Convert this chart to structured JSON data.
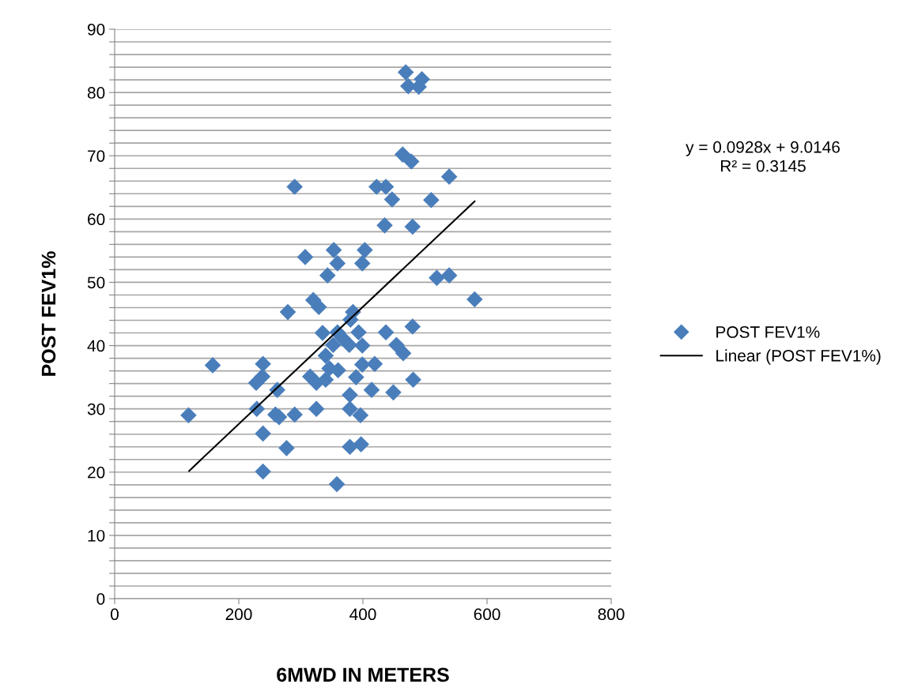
{
  "chart_data": {
    "type": "scatter",
    "xlabel": "6MWD IN METERS",
    "ylabel": "POST FEV1%",
    "xlim": [
      0,
      800
    ],
    "xticks": [
      0,
      200,
      400,
      600,
      800
    ],
    "ylim": [
      0,
      90
    ],
    "yticks": [
      0,
      {
        "value": 2,
        "label": null
      },
      {
        "value": 4,
        "label": null
      },
      {
        "value": 6,
        "label": null
      },
      {
        "value": 8,
        "label": null
      },
      10,
      {
        "value": 12,
        "label": null
      },
      {
        "value": 14,
        "label": null
      },
      {
        "value": 16,
        "label": null
      },
      {
        "value": 18,
        "label": null
      },
      20,
      {
        "value": 22,
        "label": null
      },
      {
        "value": 24,
        "label": null
      },
      {
        "value": 26,
        "label": null
      },
      {
        "value": 28,
        "label": null
      },
      30,
      {
        "value": 32,
        "label": null
      },
      {
        "value": 34,
        "label": null
      },
      {
        "value": 36,
        "label": null
      },
      {
        "value": 38,
        "label": null
      },
      40,
      {
        "value": 42,
        "label": null
      },
      {
        "value": 44,
        "label": null
      },
      {
        "value": 46,
        "label": null
      },
      {
        "value": 48,
        "label": null
      },
      50,
      {
        "value": 52,
        "label": null
      },
      {
        "value": 54,
        "label": null
      },
      {
        "value": 56,
        "label": null
      },
      {
        "value": 58,
        "label": null
      },
      60,
      {
        "value": 62,
        "label": null
      },
      {
        "value": 64,
        "label": null
      },
      {
        "value": 66,
        "label": null
      },
      {
        "value": 68,
        "label": null
      },
      70,
      {
        "value": 72,
        "label": null
      },
      {
        "value": 74,
        "label": null
      },
      {
        "value": 76,
        "label": null
      },
      {
        "value": 78,
        "label": null
      },
      80,
      {
        "value": 82,
        "label": null
      },
      {
        "value": 84,
        "label": null
      },
      {
        "value": 86,
        "label": null
      },
      {
        "value": 88,
        "label": null
      },
      90
    ],
    "grid": "y",
    "legend": "right",
    "annotations": [
      "y = 0.0928x + 9.0146\nR² = 0.3145"
    ],
    "series": [
      {
        "name": "POST FEV1%",
        "marker": "diamond",
        "color": "#4a7ebb",
        "x": [
          469,
          495,
          473,
          490,
          464,
          478,
          539,
          290,
          422,
          437,
          447,
          510,
          435,
          480,
          307,
          353,
          403,
          359,
          399,
          343,
          519,
          539,
          580,
          320,
          329,
          279,
          384,
          380,
          335,
          359,
          393,
          437,
          480,
          367,
          378,
          399,
          352,
          454,
          465,
          340,
          158,
          239,
          238,
          228,
          346,
          360,
          399,
          419,
          315,
          325,
          340,
          389,
          481,
          262,
          414,
          379,
          449,
          229,
          325,
          379,
          119,
          259,
          265,
          290,
          396,
          239,
          277,
          379,
          397,
          239,
          358
        ],
        "values": [
          83.2,
          82.1,
          81.0,
          80.9,
          70.2,
          69.1,
          66.7,
          65.1,
          65.1,
          65.1,
          63.1,
          63.0,
          59.0,
          58.8,
          54.0,
          55.1,
          55.1,
          53.0,
          53.0,
          51.1,
          50.7,
          51.1,
          47.3,
          47.2,
          46.1,
          45.3,
          45.3,
          44.1,
          42.0,
          42.1,
          42.1,
          42.1,
          43.0,
          41.2,
          40.1,
          40.0,
          40.1,
          40.1,
          38.8,
          38.4,
          36.9,
          37.1,
          35.1,
          34.1,
          36.4,
          36.1,
          37.0,
          37.1,
          35.1,
          34.1,
          34.6,
          35.0,
          34.6,
          33.0,
          33.0,
          32.2,
          32.6,
          30.0,
          30.0,
          30.0,
          29.0,
          29.1,
          28.7,
          29.1,
          29.0,
          26.1,
          23.8,
          24.0,
          24.4,
          20.1,
          18.1
        ]
      },
      {
        "name": "Linear (POST FEV1%)",
        "type": "line",
        "color": "#000000",
        "line_style": "solid",
        "marker": "none",
        "x": [
          120,
          580
        ],
        "values": [
          20.2,
          62.8
        ]
      }
    ]
  }
}
